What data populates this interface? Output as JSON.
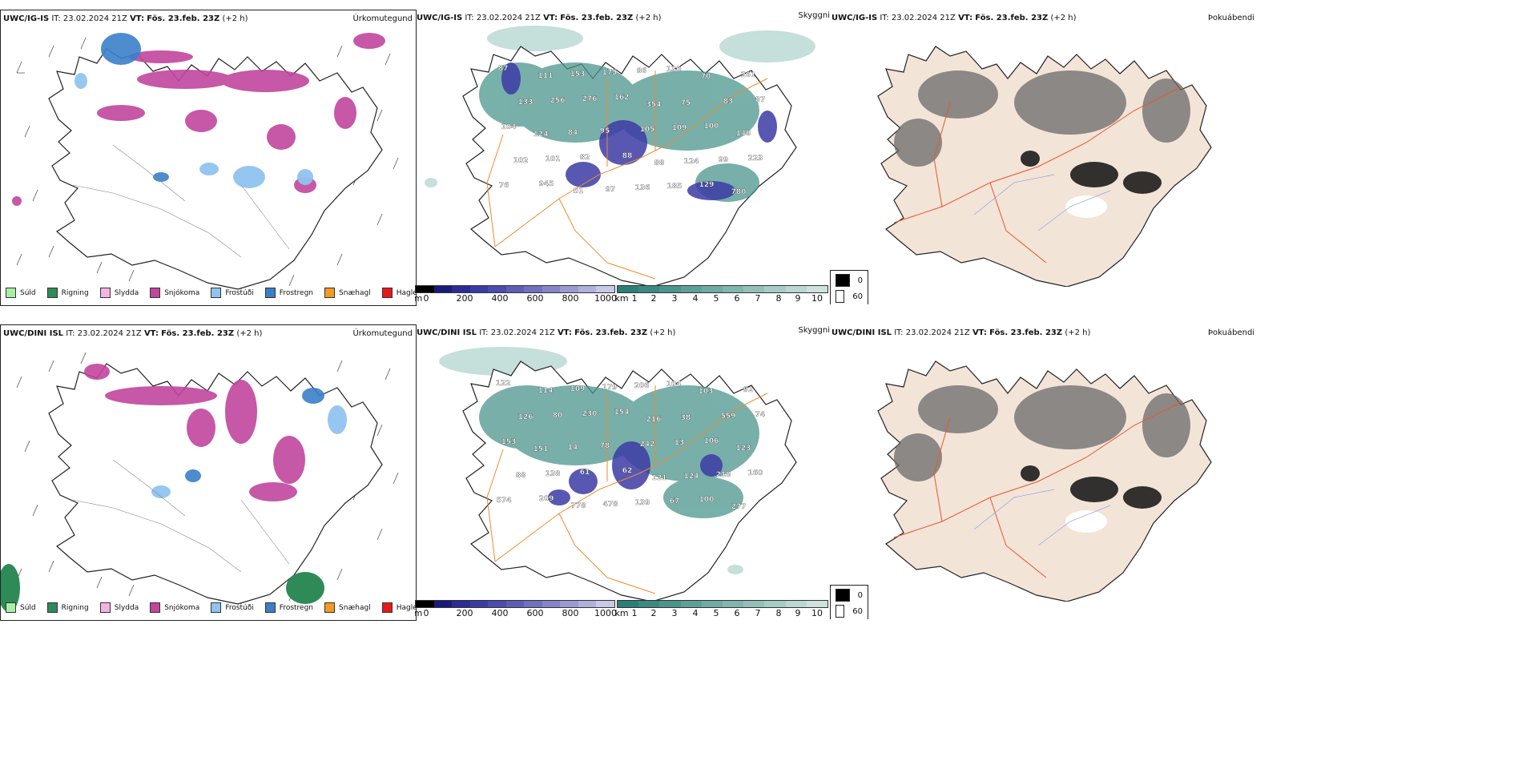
{
  "rows": [
    {
      "panels": [
        {
          "model": "UWC/IG-IS",
          "it": "IT: 23.02.2024 21Z",
          "vt_label": "VT:",
          "vt": "Fös. 23.feb. 23Z",
          "offset": "(+2 h)",
          "title": "Úrkomutegund"
        },
        {
          "model": "UWC/IG-IS",
          "it": "IT: 23.02.2024 21Z",
          "vt_label": "VT:",
          "vt": "Fös. 23.feb. 23Z",
          "offset": "(+2 h)",
          "title": "Skyggni"
        },
        {
          "model": "UWC/IG-IS",
          "it": "IT: 23.02.2024 21Z",
          "vt_label": "VT:",
          "vt": "Fös. 23.feb. 23Z",
          "offset": "(+2 h)",
          "title": "Þokuábendi"
        }
      ]
    },
    {
      "panels": [
        {
          "model": "UWC/DINI ISL",
          "it": "IT: 23.02.2024 21Z",
          "vt_label": "VT:",
          "vt": "Fös. 23.feb. 23Z",
          "offset": "(+2 h)",
          "title": "Úrkomutegund"
        },
        {
          "model": "UWC/DINI ISL",
          "it": "IT: 23.02.2024 21Z",
          "vt_label": "VT:",
          "vt": "Fös. 23.feb. 23Z",
          "offset": "(+2 h)",
          "title": "Skyggni"
        },
        {
          "model": "UWC/DINI ISL",
          "it": "IT: 23.02.2024 21Z",
          "vt_label": "VT:",
          "vt": "Fös. 23.feb. 23Z",
          "offset": "(+2 h)",
          "title": "Þokuábendi"
        }
      ]
    }
  ],
  "precip_legend": [
    {
      "label": "Súld",
      "color": "#a6f0a6"
    },
    {
      "label": "Rigning",
      "color": "#2e8b57"
    },
    {
      "label": "Slydda",
      "color": "#f5b3e0"
    },
    {
      "label": "Snjókoma",
      "color": "#c2459e"
    },
    {
      "label": "Frostúði",
      "color": "#90c4f0"
    },
    {
      "label": "Frostregn",
      "color": "#3a7fc9"
    },
    {
      "label": "Snæhagl",
      "color": "#f29a24"
    },
    {
      "label": "Haglél",
      "color": "#e81818"
    }
  ],
  "vis_m": {
    "unit": "m",
    "ticks": [
      "0",
      "200",
      "400",
      "600",
      "800",
      "1000"
    ],
    "colors": [
      "#000000",
      "#1a1a7a",
      "#2c2c94",
      "#3b3ba6",
      "#4b4bb0",
      "#5d5db8",
      "#7070c0",
      "#8585c8",
      "#9a9ad0",
      "#b0b0dc",
      "#c8c8e8"
    ]
  },
  "vis_km": {
    "unit": "km",
    "ticks": [
      "1",
      "2",
      "3",
      "4",
      "5",
      "6",
      "7",
      "8",
      "9",
      "10"
    ],
    "colors": [
      "#2a7f78",
      "#3a8a82",
      "#4b958d",
      "#5ca097",
      "#6eaba2",
      "#80b6ad",
      "#93c1b9",
      "#a6ccc5",
      "#bad7d1",
      "#ceE2dd"
    ]
  },
  "fog_key": [
    {
      "label": "0",
      "color": "#000000"
    },
    {
      "label": "60",
      "color": "#ffffff"
    }
  ],
  "vis_labels_top": [
    "87",
    "111",
    "153",
    "175",
    "86",
    "130",
    "70",
    "261",
    "133",
    "256",
    "276",
    "162",
    "354",
    "75",
    "83",
    "87",
    "104",
    "124",
    "84",
    "95",
    "105",
    "109",
    "100",
    "149",
    "102",
    "101",
    "82",
    "88",
    "88",
    "124",
    "99",
    "223",
    "76",
    "945",
    "51",
    "97",
    "136",
    "185",
    "129",
    "780"
  ],
  "vis_labels_bottom": [
    "122",
    "114",
    "109",
    "179",
    "206",
    "104",
    "103",
    "92",
    "126",
    "80",
    "230",
    "154",
    "216",
    "38",
    "559",
    "74",
    "153",
    "151",
    "14",
    "78",
    "242",
    "13",
    "106",
    "123",
    "88",
    "138",
    "61",
    "62",
    "121",
    "124",
    "218",
    "160",
    "574",
    "209",
    "778",
    "478",
    "139",
    "67",
    "100",
    "277"
  ]
}
